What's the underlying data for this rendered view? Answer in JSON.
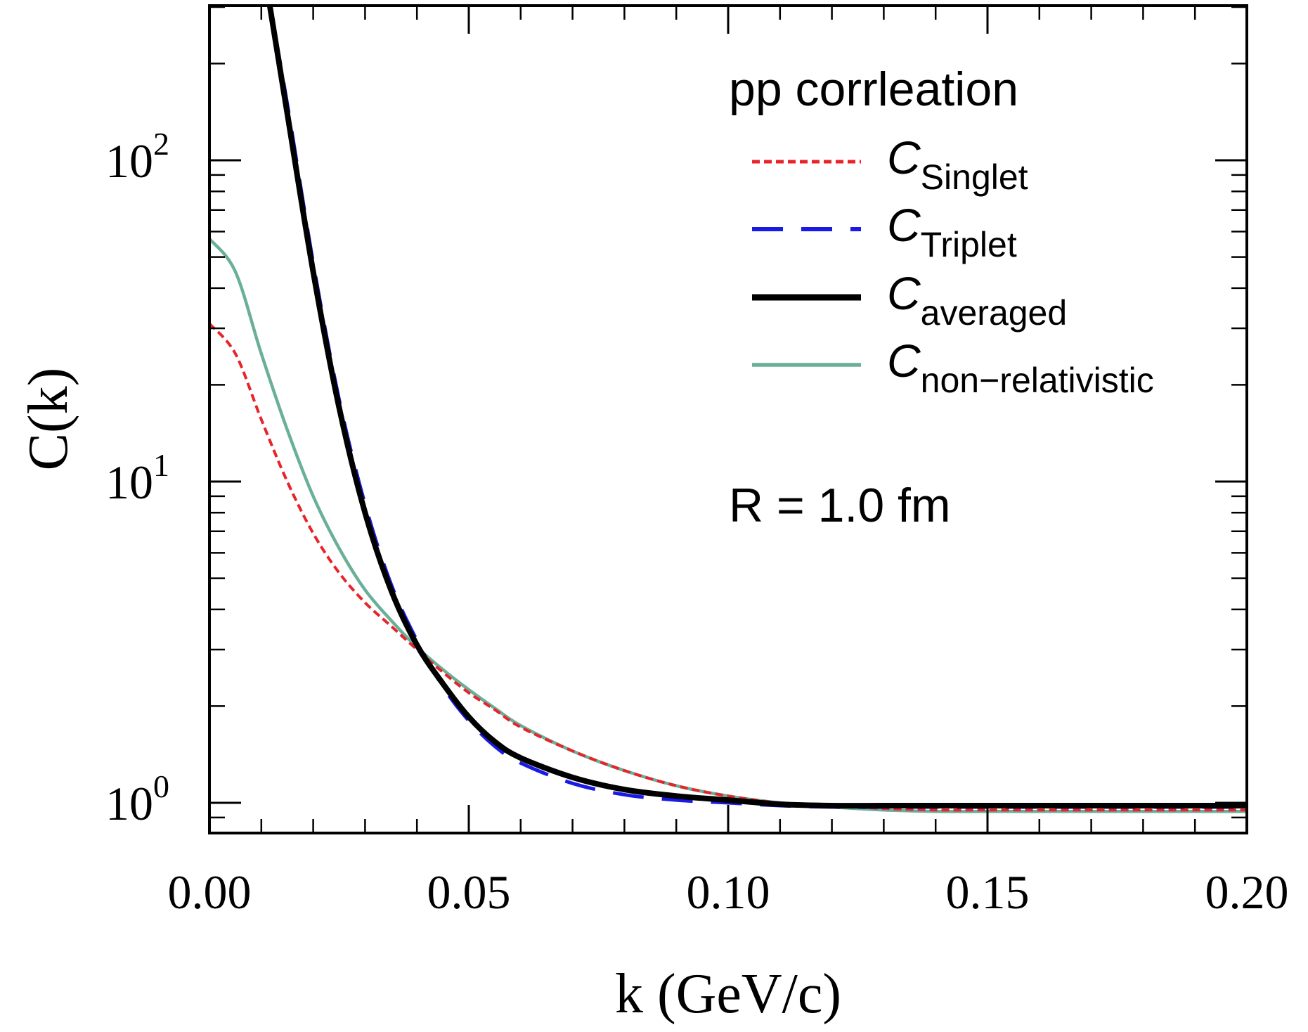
{
  "chart_data": {
    "type": "line",
    "title": "",
    "xlabel": "k (GeV/c)",
    "ylabel": "C(k)",
    "xlim": [
      0.0,
      0.2
    ],
    "ylim": [
      0.8,
      350
    ],
    "yscale": "log",
    "x_ticks": [
      "0.00",
      "0.05",
      "0.10",
      "0.15",
      "0.20"
    ],
    "y_ticks": [
      {
        "base": "10",
        "exp": "0"
      },
      {
        "base": "10",
        "exp": "1"
      },
      {
        "base": "10",
        "exp": "2"
      }
    ],
    "legend_title": "pp corrleation",
    "legend_position": "top-right",
    "annotation": "R = 1.0 fm",
    "grid": false,
    "series": [
      {
        "name": "C",
        "subscript": "Singlet",
        "color": "#e8232a",
        "style": "dotted",
        "x": [
          0.0,
          0.005,
          0.01,
          0.015,
          0.02,
          0.025,
          0.03,
          0.035,
          0.04,
          0.045,
          0.05,
          0.055,
          0.06,
          0.07,
          0.08,
          0.09,
          0.1,
          0.11,
          0.12,
          0.13,
          0.14,
          0.15,
          0.16,
          0.17,
          0.18,
          0.19,
          0.2
        ],
        "y": [
          31.0,
          25.0,
          15.6,
          10.0,
          6.9,
          5.2,
          4.2,
          3.55,
          3.0,
          2.55,
          2.2,
          1.95,
          1.72,
          1.45,
          1.26,
          1.13,
          1.05,
          1.0,
          0.98,
          0.96,
          0.95,
          0.95,
          0.95,
          0.95,
          0.95,
          0.95,
          0.95
        ]
      },
      {
        "name": "C",
        "subscript": "Triplet",
        "color": "#1a1ae6",
        "style": "dashed",
        "x": [
          0.011,
          0.015,
          0.02,
          0.025,
          0.03,
          0.035,
          0.04,
          0.045,
          0.05,
          0.055,
          0.06,
          0.07,
          0.08,
          0.09,
          0.1,
          0.11,
          0.12,
          0.13,
          0.14,
          0.15,
          0.16,
          0.17,
          0.18,
          0.19,
          0.2
        ],
        "y": [
          350,
          150,
          48,
          18,
          8.5,
          4.8,
          3.2,
          2.3,
          1.8,
          1.5,
          1.33,
          1.15,
          1.06,
          1.02,
          1.0,
          0.98,
          0.97,
          0.97,
          0.97,
          0.97,
          0.97,
          0.97,
          0.97,
          0.97,
          0.97
        ]
      },
      {
        "name": "C",
        "subscript": "averaged",
        "color": "#000000",
        "style": "solid-thick",
        "x": [
          0.011,
          0.015,
          0.02,
          0.025,
          0.03,
          0.035,
          0.04,
          0.045,
          0.05,
          0.055,
          0.06,
          0.07,
          0.08,
          0.09,
          0.1,
          0.11,
          0.12,
          0.13,
          0.14,
          0.15,
          0.16,
          0.17,
          0.18,
          0.19,
          0.2
        ],
        "y": [
          350,
          140,
          45,
          17,
          8.0,
          4.6,
          3.1,
          2.35,
          1.85,
          1.55,
          1.38,
          1.2,
          1.1,
          1.05,
          1.02,
          0.99,
          0.98,
          0.98,
          0.98,
          0.98,
          0.98,
          0.98,
          0.98,
          0.98,
          0.98
        ]
      },
      {
        "name": "C",
        "subscript": "non−relativistic",
        "color": "#6aaf98",
        "style": "solid",
        "x": [
          0.0,
          0.005,
          0.01,
          0.015,
          0.02,
          0.025,
          0.03,
          0.035,
          0.04,
          0.045,
          0.05,
          0.055,
          0.06,
          0.07,
          0.08,
          0.09,
          0.1,
          0.11,
          0.12,
          0.13,
          0.14,
          0.15,
          0.16,
          0.17,
          0.18,
          0.19,
          0.2
        ],
        "y": [
          57.0,
          45.0,
          25.0,
          14.5,
          9.0,
          6.2,
          4.6,
          3.7,
          3.05,
          2.6,
          2.25,
          1.97,
          1.74,
          1.45,
          1.26,
          1.13,
          1.05,
          1.0,
          0.97,
          0.95,
          0.94,
          0.94,
          0.94,
          0.94,
          0.94,
          0.94,
          0.94
        ]
      }
    ]
  }
}
